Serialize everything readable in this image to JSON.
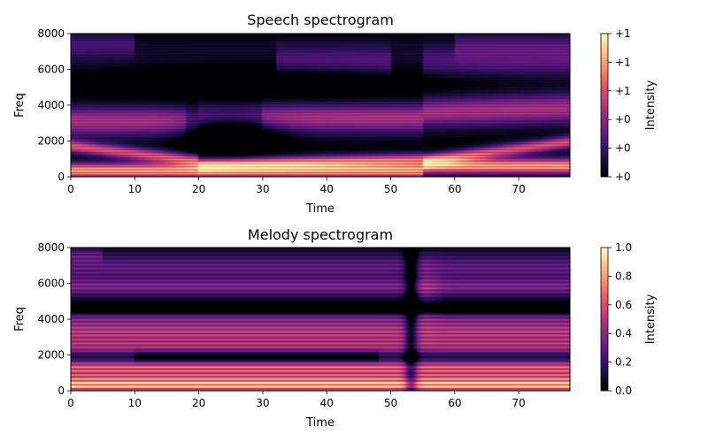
{
  "chart_data": [
    {
      "type": "heatmap",
      "title": "Speech spectrogram",
      "xlabel": "Time",
      "ylabel": "Freq",
      "xlim": [
        0,
        78
      ],
      "ylim": [
        0,
        8000
      ],
      "xticks": [
        "0",
        "10",
        "20",
        "30",
        "40",
        "50",
        "60",
        "70"
      ],
      "yticks": [
        "0",
        "2000",
        "4000",
        "6000",
        "8000"
      ],
      "colorbar": {
        "label": "Intensity",
        "range": [
          0,
          1
        ],
        "ticks": [
          "+0",
          "+0",
          "+0",
          "+1",
          "+1",
          "+1"
        ],
        "colormap": "magma"
      },
      "description_features": {
        "bright_low_band_hz": [
          0,
          800
        ],
        "formant_band_hz": [
          2500,
          4300
        ],
        "dark_gap_time": [
          18,
          30
        ],
        "dark_top_region_hz": [
          5000,
          8000
        ]
      }
    },
    {
      "type": "heatmap",
      "title": "Melody spectrogram",
      "xlabel": "Time",
      "ylabel": "Freq",
      "xlim": [
        0,
        78
      ],
      "ylim": [
        0,
        8000
      ],
      "xticks": [
        "0",
        "10",
        "20",
        "30",
        "40",
        "50",
        "60",
        "70"
      ],
      "yticks": [
        "0",
        "2000",
        "4000",
        "6000",
        "8000"
      ],
      "colorbar": {
        "label": "Intensity",
        "range": [
          0,
          1
        ],
        "ticks": [
          "0.0",
          "0.2",
          "0.4",
          "0.6",
          "0.8",
          "1.0"
        ],
        "colormap": "magma"
      },
      "description_features": {
        "harmonic_spacing_hz": 220,
        "dark_band_hz": 4600,
        "vertical_break_time": 53,
        "bright_bands_hz": [
          400,
          1400,
          3400
        ]
      }
    }
  ],
  "colors": {
    "magma": [
      "#000004",
      "#1c1044",
      "#4f127b",
      "#812581",
      "#b5367a",
      "#e55064",
      "#fb8761",
      "#fec287",
      "#fcfdbf"
    ]
  }
}
